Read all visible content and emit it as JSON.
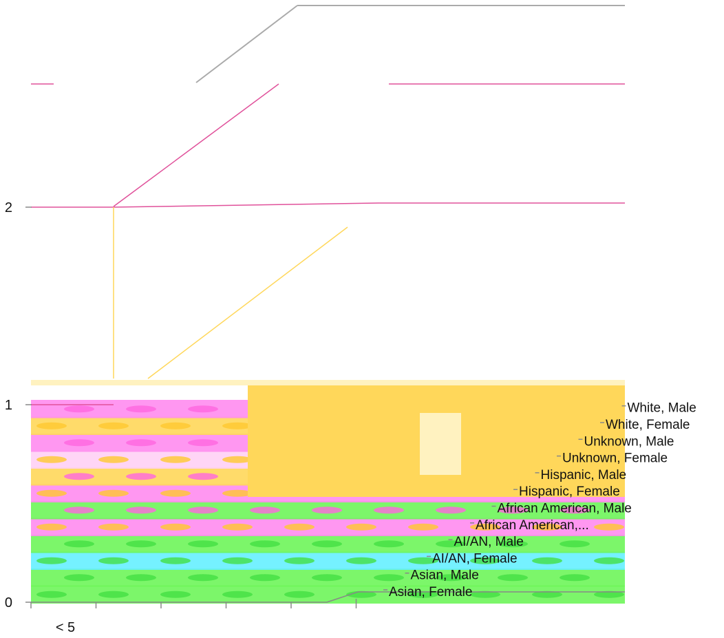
{
  "chart_data": {
    "type": "bar",
    "subtype": "3d-cylinder",
    "title": "",
    "xlabel": "",
    "ylabel": "",
    "ylim": [
      0,
      2
    ],
    "yticks": [
      "0",
      "1",
      "2"
    ],
    "x_categories": [
      "< 5",
      "",
      "",
      "",
      "",
      ""
    ],
    "depth_categories": [
      "Asian, Female",
      "Asian, Male",
      "AI/AN, Female",
      "AI/AN, Male",
      "African American,...",
      "African American, Male",
      "Hispanic, Female",
      "Hispanic, Male",
      "Unknown, Female",
      "Unknown, Male",
      "White, Female",
      "White, Male"
    ],
    "series": [
      {
        "values": [
          [
            0,
            0,
            0,
            0,
            0,
            0
          ],
          [
            0,
            0,
            0,
            0,
            0,
            0
          ],
          [
            0,
            0,
            0,
            0,
            0,
            0
          ],
          [
            0,
            0,
            0,
            0,
            0,
            0
          ],
          [
            0,
            0,
            0,
            0,
            0,
            0
          ],
          [
            0,
            0,
            0,
            0,
            0,
            0
          ],
          [
            0,
            0,
            0,
            0,
            0,
            0
          ],
          [
            0,
            0,
            0,
            0,
            0,
            0
          ],
          [
            0,
            0,
            0,
            0,
            0,
            0
          ],
          [
            0,
            0,
            0,
            0,
            0,
            0
          ],
          [
            0,
            0,
            0,
            0,
            0,
            0
          ],
          [
            0,
            0,
            0,
            0,
            0,
            3
          ]
        ]
      }
    ],
    "grid": true,
    "legend": "none"
  },
  "colors": {
    "green": "#6ef55a",
    "cyan": "#66f0ff",
    "pink": "#ff8cf0",
    "light_pink": "#ffd0f5",
    "yellow": "#ffd75a",
    "cream": "#fff2c0",
    "orange": "#f79a3c",
    "red": "#d01030",
    "magenta_line": "#e0509a",
    "gray_line": "#aaaaaa",
    "axis": "#888888"
  }
}
